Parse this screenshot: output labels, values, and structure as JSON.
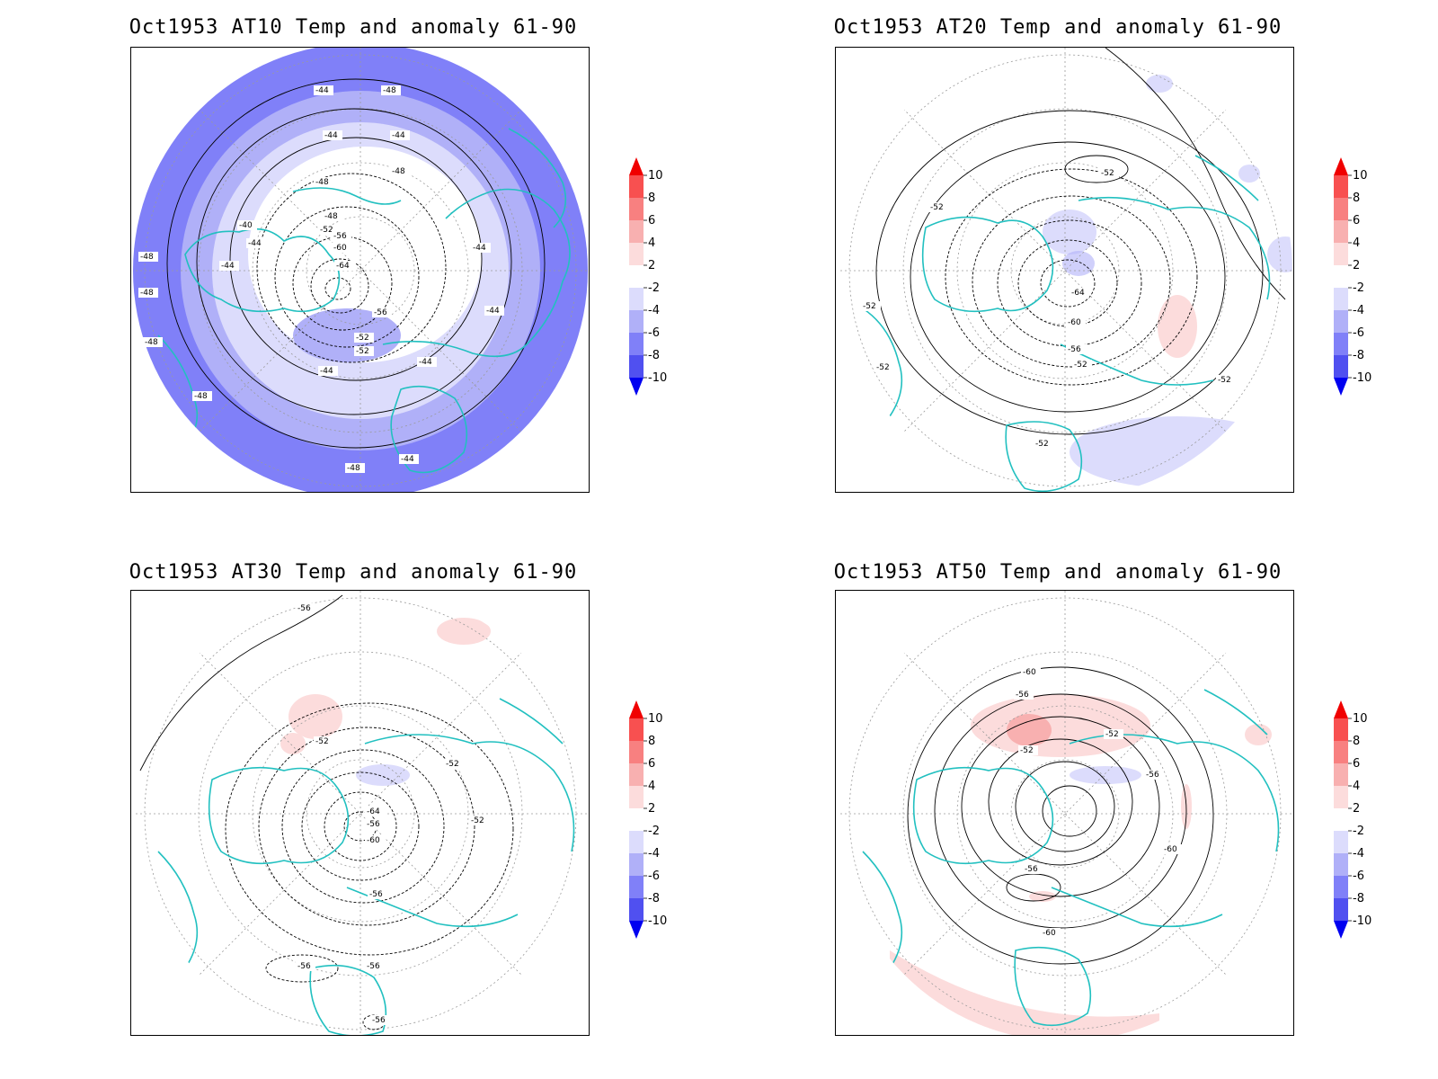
{
  "colors": {
    "coastline": "#22c0c0",
    "contour": "#000000",
    "grid": "#9a9a9a",
    "frame": "#000000"
  },
  "colorbar": {
    "levels": [
      "10",
      "8",
      "6",
      "4",
      "2",
      "-2",
      "-4",
      "-6",
      "-8",
      "-10"
    ],
    "bins": [
      {
        "color": "#f00000"
      },
      {
        "color": "#f85050"
      },
      {
        "color": "#f88080"
      },
      {
        "color": "#f8b0b0"
      },
      {
        "color": "#fcdcdc"
      },
      {
        "color": "#ffffff"
      },
      {
        "color": "#dcdcfc"
      },
      {
        "color": "#b0b0f8"
      },
      {
        "color": "#8080f8"
      },
      {
        "color": "#5050f0"
      },
      {
        "color": "#0000f0"
      }
    ]
  },
  "panels": [
    {
      "title": "Oct1953 AT10 Temp and anomaly 61-90",
      "level": "AT10",
      "contour_labels": [
        "-40",
        "-44",
        "-44",
        "-44",
        "-44",
        "-44",
        "-44",
        "-44",
        "-44",
        "-44",
        "-44",
        "-48",
        "-48",
        "-48",
        "-48",
        "-48",
        "-48",
        "-48",
        "-48",
        "-48",
        "-52",
        "-52",
        "-52",
        "-56",
        "-56",
        "-60",
        "-60",
        "-64"
      ],
      "anomaly_bands": [
        "-2",
        "-4",
        "-6"
      ]
    },
    {
      "title": "Oct1953 AT20 Temp and anomaly 61-90",
      "level": "AT20",
      "contour_labels": [
        "-52",
        "-52",
        "-52",
        "-52",
        "-52",
        "-52",
        "-52",
        "-56",
        "-60",
        "-64"
      ],
      "anomaly_bands": [
        "-2",
        "2"
      ]
    },
    {
      "title": "Oct1953 AT30 Temp and anomaly 61-90",
      "level": "AT30",
      "contour_labels": [
        "-56",
        "-52",
        "-52",
        "-52",
        "-56",
        "-56",
        "-56",
        "-56",
        "-60",
        "-64",
        "-56"
      ],
      "anomaly_bands": [
        "2",
        "-2"
      ]
    },
    {
      "title": "Oct1953 AT50 Temp and anomaly 61-90",
      "level": "AT50",
      "contour_labels": [
        "-60",
        "-56",
        "-52",
        "-52",
        "-56",
        "-60",
        "-56",
        "-60"
      ],
      "anomaly_bands": [
        "2",
        "4",
        "-2"
      ]
    }
  ]
}
